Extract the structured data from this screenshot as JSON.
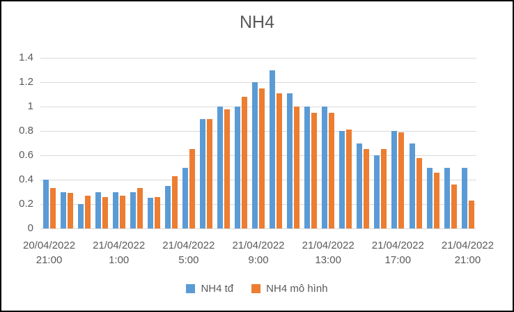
{
  "chart_data": {
    "type": "bar",
    "title": "NH4",
    "xlabel": "",
    "ylabel": "",
    "ylim": [
      0,
      1.4
    ],
    "grid": true,
    "legend_position": "bottom",
    "colors": {
      "series_blue": "#5B9BD5",
      "series_orange": "#ED7D31",
      "gridline": "#D9D9D9",
      "text": "#595959",
      "background": "#FFFFFF",
      "frame_border": "#000000"
    },
    "y_ticks": [
      {
        "label": "1.4",
        "value": 1.4
      },
      {
        "label": "1.2",
        "value": 1.2
      },
      {
        "label": "1",
        "value": 1.0
      },
      {
        "label": "0.8",
        "value": 0.8
      },
      {
        "label": "0.6",
        "value": 0.6
      },
      {
        "label": "0.4",
        "value": 0.4
      },
      {
        "label": "0.2",
        "value": 0.2
      },
      {
        "label": "0",
        "value": 0.0
      }
    ],
    "categories": [
      "20/04/2022 21:00",
      "20/04/2022 22:00",
      "20/04/2022 23:00",
      "21/04/2022 0:00",
      "21/04/2022 1:00",
      "21/04/2022 2:00",
      "21/04/2022 3:00",
      "21/04/2022 4:00",
      "21/04/2022 5:00",
      "21/04/2022 6:00",
      "21/04/2022 7:00",
      "21/04/2022 8:00",
      "21/04/2022 9:00",
      "21/04/2022 10:00",
      "21/04/2022 11:00",
      "21/04/2022 12:00",
      "21/04/2022 13:00",
      "21/04/2022 14:00",
      "21/04/2022 15:00",
      "21/04/2022 16:00",
      "21/04/2022 17:00",
      "21/04/2022 18:00",
      "21/04/2022 19:00",
      "21/04/2022 20:00",
      "21/04/2022 21:00"
    ],
    "x_tick_labels": [
      {
        "date": "20/04/2022",
        "time": "21:00",
        "category_index": 0
      },
      {
        "date": "21/04/2022",
        "time": "1:00",
        "category_index": 4
      },
      {
        "date": "21/04/2022",
        "time": "5:00",
        "category_index": 8
      },
      {
        "date": "21/04/2022",
        "time": "9:00",
        "category_index": 12
      },
      {
        "date": "21/04/2022",
        "time": "13:00",
        "category_index": 16
      },
      {
        "date": "21/04/2022",
        "time": "17:00",
        "category_index": 20
      },
      {
        "date": "21/04/2022",
        "time": "21:00",
        "category_index": 24
      }
    ],
    "series": [
      {
        "id": "nh4-td",
        "name": "NH4 tđ",
        "color": "#5B9BD5",
        "values": [
          0.4,
          0.3,
          0.2,
          0.3,
          0.3,
          0.3,
          0.25,
          0.35,
          0.5,
          0.9,
          1.0,
          1.0,
          1.2,
          1.3,
          1.11,
          1.0,
          1.0,
          0.8,
          0.7,
          0.6,
          0.8,
          0.7,
          0.5,
          0.5,
          0.5
        ]
      },
      {
        "id": "nh4-mo-hinh",
        "name": "NH4 mô hình",
        "color": "#ED7D31",
        "values": [
          0.33,
          0.29,
          0.27,
          0.26,
          0.27,
          0.33,
          0.26,
          0.43,
          0.65,
          0.9,
          0.98,
          1.08,
          1.15,
          1.11,
          1.0,
          0.95,
          0.95,
          0.81,
          0.65,
          0.65,
          0.79,
          0.58,
          0.46,
          0.36,
          0.23
        ]
      }
    ]
  }
}
